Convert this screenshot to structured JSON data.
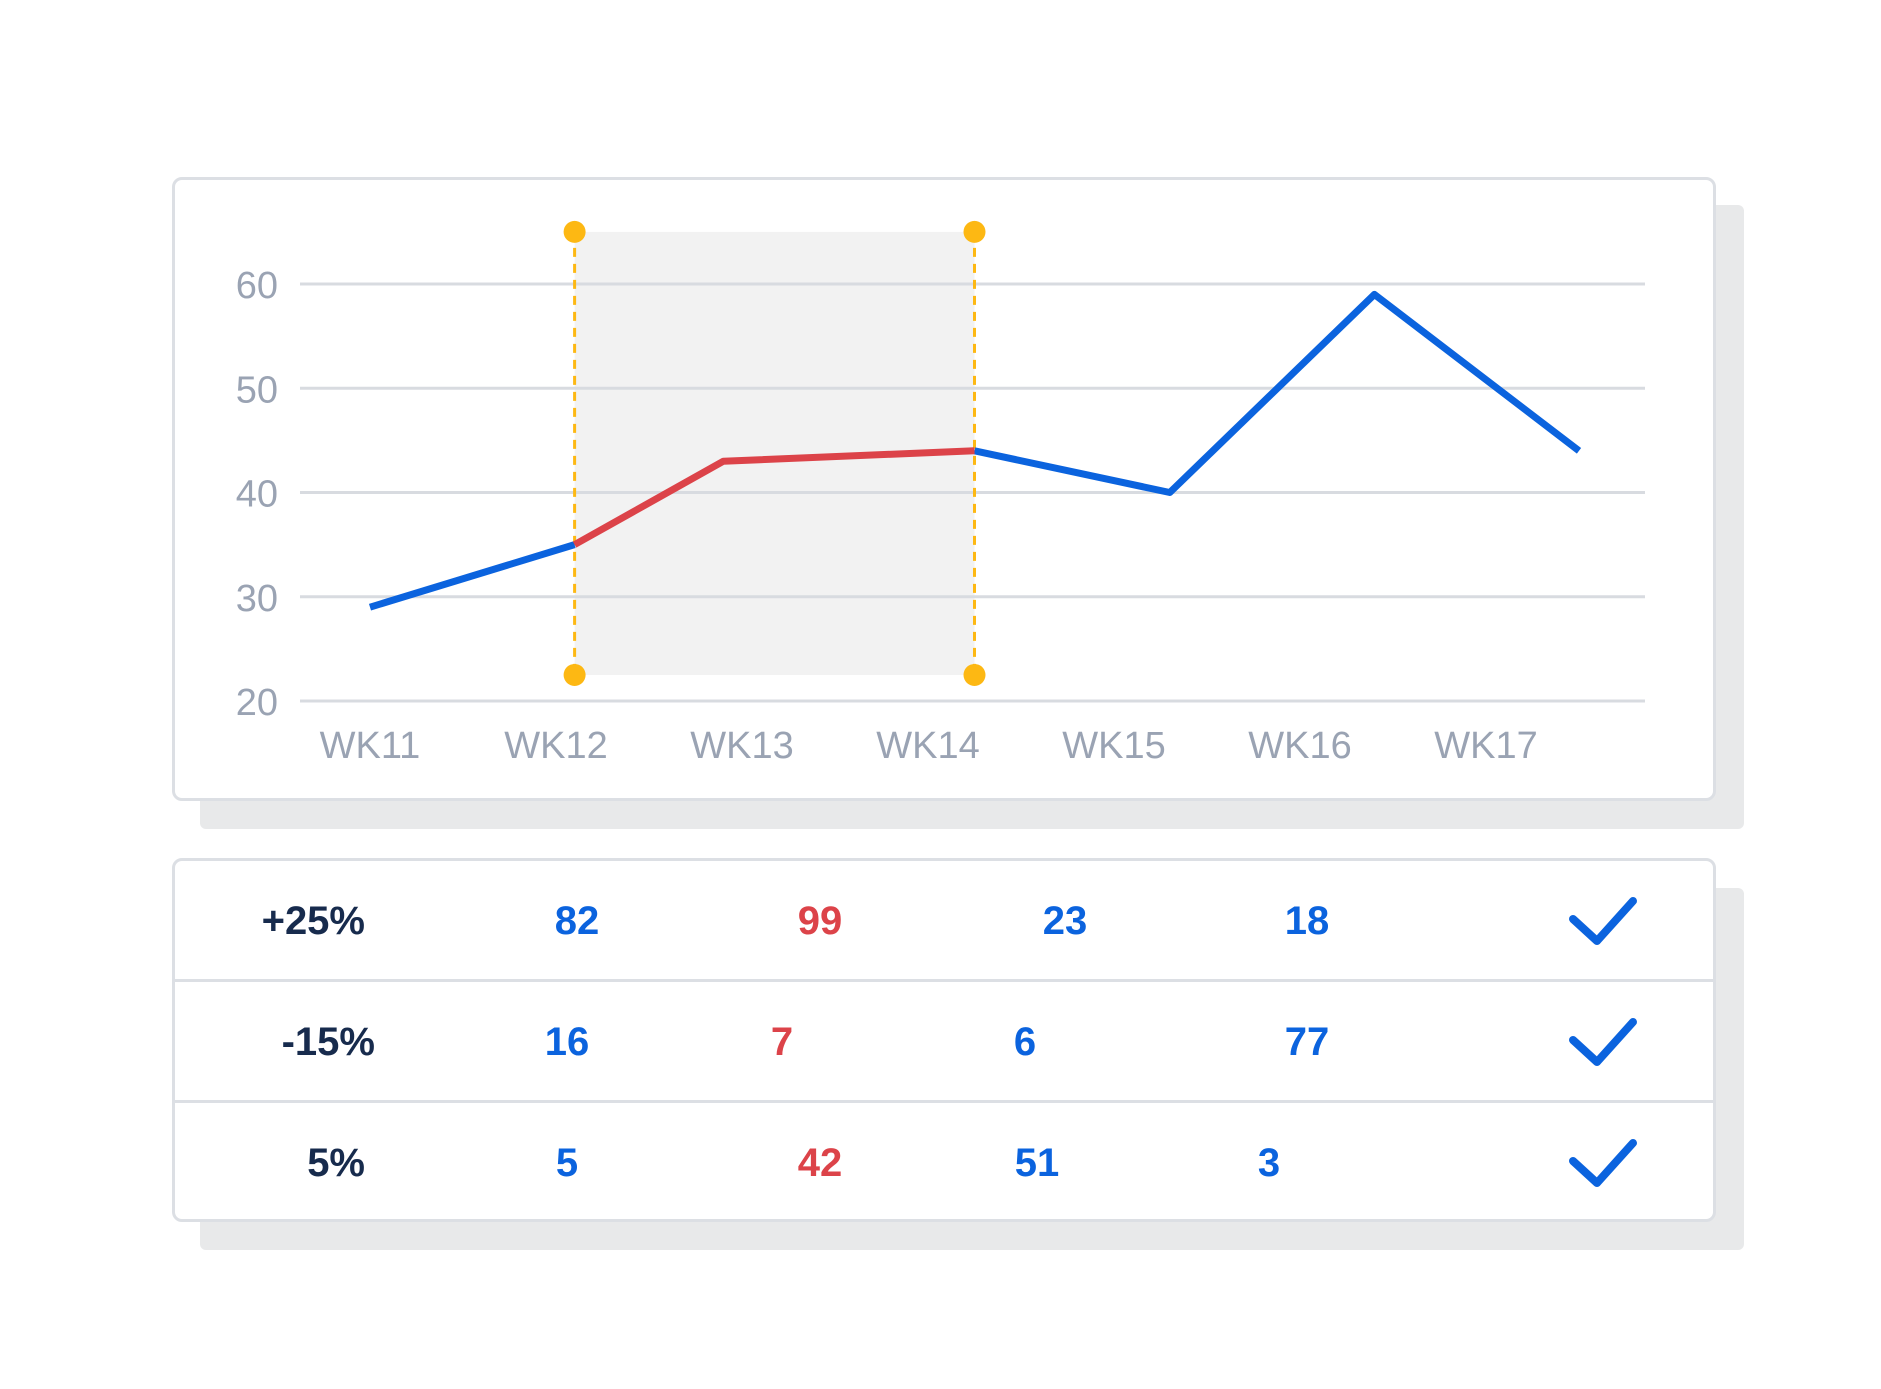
{
  "colors": {
    "primary_line": "#0b63de",
    "highlight_line": "#dc4349",
    "selection_handle": "#fdb813",
    "selection_fill": "#f2f2f2",
    "axis_text": "#9aa3b3",
    "grid": "#d8dbe0",
    "blue_value": "#0b63de",
    "red_value": "#dc4349",
    "label_text": "#172b4d"
  },
  "chart_data": {
    "type": "line",
    "categories": [
      "WK11",
      "WK12",
      "WK13",
      "WK14",
      "WK15",
      "WK16",
      "WK17"
    ],
    "series": [
      {
        "values": [
          29,
          35,
          43,
          44,
          40,
          59,
          44
        ]
      }
    ],
    "x": [
      0.0,
      1.1,
      1.9,
      3.25,
      4.3,
      5.4,
      6.5
    ],
    "highlight_range": {
      "from": 1.1,
      "to": 3.25
    },
    "yticks": [
      20,
      30,
      40,
      50,
      60
    ],
    "ylim": [
      20,
      60
    ],
    "grid": true,
    "selection_box_ylim": [
      22.5,
      65
    ]
  },
  "table": {
    "rows": [
      {
        "label": "+25%",
        "values": [
          "82",
          "99",
          "23",
          "18"
        ],
        "checked": true
      },
      {
        "label": "-15%",
        "values": [
          "16",
          "7",
          "6",
          "77"
        ],
        "checked": true
      },
      {
        "label": "5%",
        "values": [
          "5",
          "42",
          "51",
          "3"
        ],
        "checked": true
      }
    ],
    "value_colors": [
      "blue",
      "red",
      "blue",
      "blue"
    ],
    "check_icon": "checkmark-icon"
  }
}
